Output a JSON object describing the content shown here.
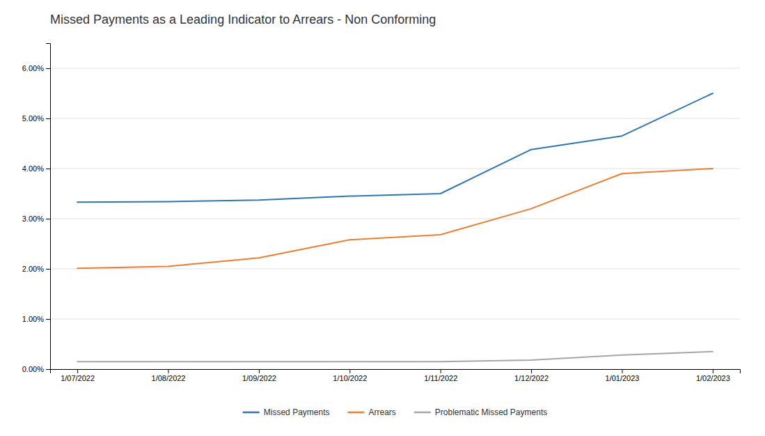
{
  "chart_data": {
    "type": "line",
    "title": "Missed Payments as a Leading Indicator to Arrears - Non Conforming",
    "categories": [
      "1/07/2022",
      "1/08/2022",
      "1/09/2022",
      "1/10/2022",
      "1/11/2022",
      "1/12/2022",
      "1/01/2023",
      "1/02/2023"
    ],
    "series": [
      {
        "name": "Missed Payments",
        "color": "#2E75B6",
        "values": [
          0.0333,
          0.0334,
          0.0337,
          0.0345,
          0.035,
          0.0438,
          0.0465,
          0.055
        ]
      },
      {
        "name": "Arrears",
        "color": "#ED7D31",
        "values": [
          0.0201,
          0.0205,
          0.0222,
          0.0258,
          0.0268,
          0.032,
          0.039,
          0.04
        ]
      },
      {
        "name": "Problematic Missed Payments",
        "color": "#A6A6A6",
        "values": [
          0.0015,
          0.0015,
          0.0015,
          0.0015,
          0.0015,
          0.0018,
          0.0028,
          0.0035
        ]
      }
    ],
    "ylim": [
      0.0,
      0.065
    ],
    "yticks": [
      {
        "value": 0.0,
        "label": "0.00%"
      },
      {
        "value": 0.01,
        "label": "1.00%"
      },
      {
        "value": 0.02,
        "label": "2.00%"
      },
      {
        "value": 0.03,
        "label": "3.00%"
      },
      {
        "value": 0.04,
        "label": "4.00%"
      },
      {
        "value": 0.05,
        "label": "5.00%"
      },
      {
        "value": 0.06,
        "label": "6.00%"
      }
    ],
    "grid": true,
    "legend": "bottom"
  }
}
